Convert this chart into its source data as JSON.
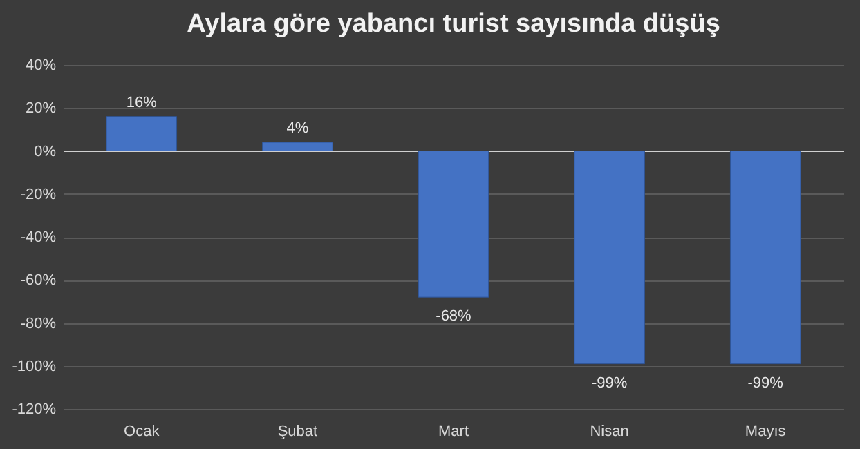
{
  "chart_data": {
    "type": "bar",
    "title": "Aylara göre yabancı turist sayısında düşüş",
    "categories": [
      "Ocak",
      "Şubat",
      "Mart",
      "Nisan",
      "Mayıs"
    ],
    "values": [
      16,
      4,
      -68,
      -99,
      -99
    ],
    "color": "#4472c4",
    "value_labels": [
      "16%",
      "4%",
      "-68%",
      "-99%",
      "-99%"
    ],
    "ylim": [
      -120,
      40
    ],
    "yticks": [
      {
        "value": -120,
        "label": "-120%"
      },
      {
        "value": -100,
        "label": "-100%"
      },
      {
        "value": -80,
        "label": "-80%"
      },
      {
        "value": -60,
        "label": "-60%"
      },
      {
        "value": -40,
        "label": "-40%"
      },
      {
        "value": -20,
        "label": "-20%"
      },
      {
        "value": 0,
        "label": "0%"
      },
      {
        "value": 20,
        "label": "20%"
      },
      {
        "value": 40,
        "label": "40%"
      }
    ],
    "grid": "y"
  }
}
